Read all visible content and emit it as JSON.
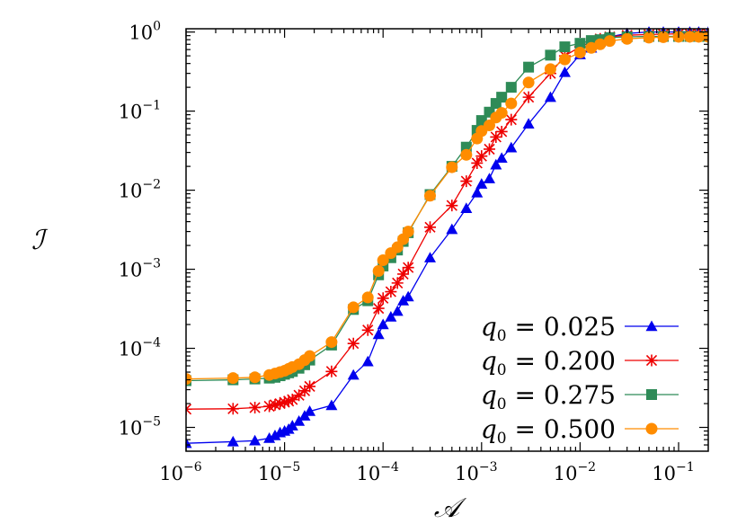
{
  "chart_data": {
    "type": "line",
    "title": "",
    "xlabel": "𝒜",
    "ylabel": "ℐ",
    "xscale": "log",
    "yscale": "log",
    "xlim": [
      1e-06,
      0.2
    ],
    "ylim": [
      5e-06,
      1.1
    ],
    "grid": false,
    "legend_position": "bottom-right",
    "x_ticks": [
      {
        "value": 1e-06,
        "base": "10",
        "exp": "−6"
      },
      {
        "value": 1e-05,
        "base": "10",
        "exp": "−5"
      },
      {
        "value": 0.0001,
        "base": "10",
        "exp": "−4"
      },
      {
        "value": 0.001,
        "base": "10",
        "exp": "−3"
      },
      {
        "value": 0.01,
        "base": "10",
        "exp": "−2"
      },
      {
        "value": 0.1,
        "base": "10",
        "exp": "−1"
      }
    ],
    "y_ticks": [
      {
        "value": 1e-05,
        "base": "10",
        "exp": "−5"
      },
      {
        "value": 0.0001,
        "base": "10",
        "exp": "−4"
      },
      {
        "value": 0.001,
        "base": "10",
        "exp": "−3"
      },
      {
        "value": 0.01,
        "base": "10",
        "exp": "−2"
      },
      {
        "value": 0.1,
        "base": "10",
        "exp": "−1"
      },
      {
        "value": 1,
        "base": "10",
        "exp": "0"
      }
    ],
    "series": [
      {
        "name": "q0 = 0.025",
        "label_var": "q",
        "label_sub": "0",
        "label_value": " = 0.025",
        "color": "#0000ee",
        "marker": "triangle",
        "x": [
          1e-06,
          3e-06,
          5e-06,
          7e-06,
          8e-06,
          9e-06,
          1e-05,
          1.1e-05,
          1.2e-05,
          1.4e-05,
          1.6e-05,
          1.8e-05,
          3e-05,
          5e-05,
          7e-05,
          9e-05,
          0.0001,
          0.00012,
          0.00014,
          0.00016,
          0.00018,
          0.0003,
          0.0005,
          0.0007,
          0.0009,
          0.001,
          0.0012,
          0.0014,
          0.0016,
          0.002,
          0.003,
          0.005,
          0.007,
          0.01,
          0.013,
          0.016,
          0.02,
          0.03,
          0.05,
          0.07,
          0.1,
          0.13,
          0.16,
          0.2
        ],
        "values": [
          6.3e-06,
          6.6e-06,
          6.8e-06,
          7.3e-06,
          7.9e-06,
          8.6e-06,
          9e-06,
          9.5e-06,
          1.05e-05,
          1.2e-05,
          1.4e-05,
          1.6e-05,
          1.9e-05,
          4.6e-05,
          6.8e-05,
          0.00015,
          0.0002,
          0.00025,
          0.000295,
          0.0004,
          0.00045,
          0.0014,
          0.0032,
          0.0059,
          0.0093,
          0.012,
          0.014,
          0.021,
          0.0255,
          0.0345,
          0.069,
          0.15,
          0.31,
          0.52,
          0.63,
          0.75,
          0.87,
          0.96,
          1.0,
          1.0,
          1.0,
          1.0,
          1.0,
          1.0
        ]
      },
      {
        "name": "q0 = 0.200",
        "label_var": "q",
        "label_sub": "0",
        "label_value": " = 0.200",
        "color": "#ee0000",
        "marker": "star",
        "x": [
          1e-06,
          3e-06,
          5e-06,
          7e-06,
          8e-06,
          9e-06,
          1e-05,
          1.1e-05,
          1.2e-05,
          1.4e-05,
          1.6e-05,
          1.8e-05,
          3e-05,
          5e-05,
          7e-05,
          9e-05,
          0.0001,
          0.00012,
          0.00014,
          0.00016,
          0.00018,
          0.0003,
          0.0005,
          0.0007,
          0.0009,
          0.001,
          0.0012,
          0.0014,
          0.0016,
          0.002,
          0.003,
          0.005,
          0.007,
          0.01,
          0.013,
          0.016,
          0.02,
          0.03,
          0.05,
          0.07,
          0.1,
          0.13,
          0.16,
          0.2
        ],
        "values": [
          1.7e-05,
          1.72e-05,
          1.78e-05,
          1.85e-05,
          1.93e-05,
          2e-05,
          2.08e-05,
          2.15e-05,
          2.25e-05,
          2.55e-05,
          2.9e-05,
          3.3e-05,
          5.1e-05,
          0.000115,
          0.00017,
          0.00032,
          0.00043,
          0.00052,
          0.00067,
          0.00087,
          0.00105,
          0.0034,
          0.0064,
          0.013,
          0.022,
          0.027,
          0.033,
          0.047,
          0.055,
          0.078,
          0.15,
          0.3,
          0.5,
          0.65,
          0.75,
          0.82,
          0.87,
          0.91,
          0.93,
          0.94,
          0.95,
          0.95,
          0.95,
          0.95
        ]
      },
      {
        "name": "q0 = 0.275",
        "label_var": "q",
        "label_sub": "0",
        "label_value": " = 0.275",
        "color": "#2e8b57",
        "marker": "square",
        "x": [
          1e-06,
          3e-06,
          5e-06,
          7e-06,
          8e-06,
          9e-06,
          1e-05,
          1.1e-05,
          1.2e-05,
          1.4e-05,
          1.6e-05,
          1.8e-05,
          3e-05,
          5e-05,
          7e-05,
          9e-05,
          0.0001,
          0.00012,
          0.00014,
          0.00016,
          0.00018,
          0.0003,
          0.0005,
          0.0007,
          0.0009,
          0.001,
          0.0012,
          0.0014,
          0.0016,
          0.002,
          0.003,
          0.005,
          0.007,
          0.01,
          0.013,
          0.016,
          0.02,
          0.03,
          0.05,
          0.07,
          0.1,
          0.13,
          0.16,
          0.2
        ],
        "values": [
          3.9e-05,
          4e-05,
          4.1e-05,
          4.2e-05,
          4.3e-05,
          4.5e-05,
          4.7e-05,
          4.9e-05,
          5.1e-05,
          5.6e-05,
          6.2e-05,
          7.1e-05,
          0.00011,
          0.00031,
          0.0004,
          0.00085,
          0.0011,
          0.0014,
          0.00175,
          0.00225,
          0.0029,
          0.0088,
          0.02,
          0.035,
          0.057,
          0.076,
          0.097,
          0.125,
          0.15,
          0.2,
          0.36,
          0.51,
          0.65,
          0.72,
          0.78,
          0.8,
          0.85,
          0.87,
          0.88,
          0.88,
          0.88,
          0.88,
          0.88,
          0.88
        ]
      },
      {
        "name": "q0 = 0.500",
        "label_var": "q",
        "label_sub": "0",
        "label_value": " = 0.500",
        "color": "#ff8c00",
        "marker": "circle",
        "x": [
          1e-06,
          3e-06,
          5e-06,
          7e-06,
          8e-06,
          9e-06,
          1e-05,
          1.1e-05,
          1.2e-05,
          1.4e-05,
          1.6e-05,
          1.8e-05,
          3e-05,
          5e-05,
          7e-05,
          9e-05,
          0.0001,
          0.00012,
          0.00014,
          0.00016,
          0.00018,
          0.0003,
          0.0005,
          0.0007,
          0.0009,
          0.001,
          0.0012,
          0.0014,
          0.0016,
          0.002,
          0.003,
          0.005,
          0.007,
          0.01,
          0.013,
          0.016,
          0.02,
          0.03,
          0.05,
          0.07,
          0.1,
          0.13,
          0.16,
          0.2
        ],
        "values": [
          4.1e-05,
          4.2e-05,
          4.3e-05,
          4.6e-05,
          4.8e-05,
          5e-05,
          5.2e-05,
          5.5e-05,
          5.8e-05,
          6.3e-05,
          7.1e-05,
          8e-05,
          0.00012,
          0.00033,
          0.00044,
          0.00095,
          0.0013,
          0.0016,
          0.0019,
          0.0024,
          0.003,
          0.0085,
          0.0195,
          0.028,
          0.045,
          0.056,
          0.066,
          0.083,
          0.095,
          0.125,
          0.23,
          0.34,
          0.45,
          0.55,
          0.63,
          0.7,
          0.77,
          0.82,
          0.85,
          0.86,
          0.87,
          0.87,
          0.87,
          0.87
        ]
      }
    ]
  }
}
